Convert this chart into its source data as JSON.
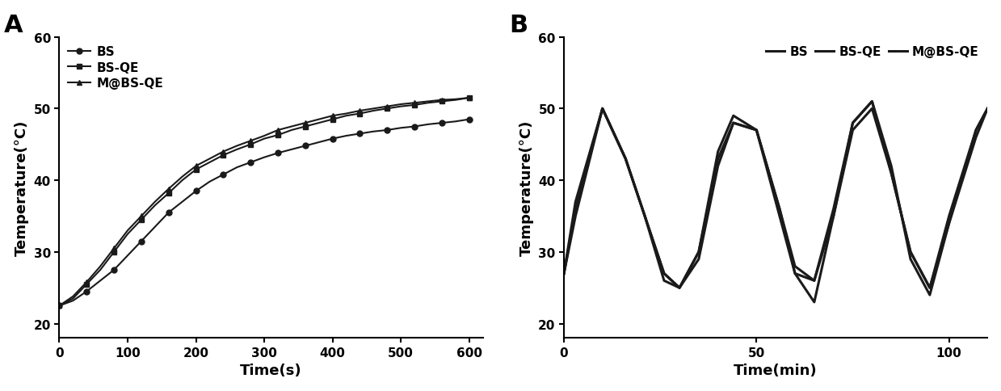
{
  "panel_A": {
    "title": "A",
    "xlabel": "Time(s)",
    "ylabel": "Temperature(°C)",
    "xlim": [
      0,
      620
    ],
    "ylim": [
      18,
      60
    ],
    "yticks": [
      20,
      30,
      40,
      50,
      60
    ],
    "xticks": [
      0,
      100,
      200,
      300,
      400,
      500,
      600
    ],
    "series": {
      "BS": {
        "label": "BS",
        "marker": "o",
        "color": "#1a1a1a",
        "linewidth": 1.5,
        "markersize": 5,
        "x": [
          0,
          20,
          40,
          60,
          80,
          100,
          120,
          140,
          160,
          180,
          200,
          220,
          240,
          260,
          280,
          300,
          320,
          340,
          360,
          380,
          400,
          420,
          440,
          460,
          480,
          500,
          520,
          540,
          560,
          580,
          600
        ],
        "y": [
          22.5,
          23.2,
          24.5,
          26.0,
          27.5,
          29.5,
          31.5,
          33.5,
          35.5,
          37.0,
          38.5,
          39.8,
          40.8,
          41.8,
          42.5,
          43.2,
          43.8,
          44.3,
          44.8,
          45.3,
          45.8,
          46.2,
          46.5,
          46.8,
          47.0,
          47.3,
          47.5,
          47.8,
          48.0,
          48.2,
          48.5
        ]
      },
      "BS-QE": {
        "label": "BS-QE",
        "marker": "s",
        "color": "#1a1a1a",
        "linewidth": 1.5,
        "markersize": 5,
        "x": [
          0,
          20,
          40,
          60,
          80,
          100,
          120,
          140,
          160,
          180,
          200,
          220,
          240,
          260,
          280,
          300,
          320,
          340,
          360,
          380,
          400,
          420,
          440,
          460,
          480,
          500,
          520,
          540,
          560,
          580,
          600
        ],
        "y": [
          22.5,
          23.5,
          25.5,
          27.5,
          30.0,
          32.5,
          34.5,
          36.5,
          38.2,
          40.0,
          41.5,
          42.5,
          43.5,
          44.3,
          45.0,
          45.8,
          46.3,
          47.0,
          47.5,
          48.0,
          48.5,
          49.0,
          49.3,
          49.7,
          50.0,
          50.3,
          50.5,
          50.8,
          51.0,
          51.2,
          51.5
        ]
      },
      "M@BS-QE": {
        "label": "M@BS-QE",
        "marker": "^",
        "color": "#1a1a1a",
        "linewidth": 1.5,
        "markersize": 5,
        "x": [
          0,
          20,
          40,
          60,
          80,
          100,
          120,
          140,
          160,
          180,
          200,
          220,
          240,
          260,
          280,
          300,
          320,
          340,
          360,
          380,
          400,
          420,
          440,
          460,
          480,
          500,
          520,
          540,
          560,
          580,
          600
        ],
        "y": [
          22.5,
          23.8,
          25.8,
          28.0,
          30.5,
          33.0,
          35.0,
          37.0,
          38.8,
          40.5,
          42.0,
          43.0,
          44.0,
          44.8,
          45.5,
          46.2,
          47.0,
          47.5,
          48.0,
          48.5,
          49.0,
          49.3,
          49.7,
          50.0,
          50.3,
          50.6,
          50.8,
          51.0,
          51.2,
          51.3,
          51.5
        ]
      }
    }
  },
  "panel_B": {
    "title": "B",
    "xlabel": "Time(min)",
    "ylabel": "Temperature(°C)",
    "xlim": [
      0,
      110
    ],
    "ylim": [
      18,
      60
    ],
    "yticks": [
      20,
      30,
      40,
      50,
      60
    ],
    "xticks": [
      0,
      50,
      100
    ],
    "series": {
      "BS": {
        "label": "BS",
        "color": "#1a1a1a",
        "linewidth": 2.2,
        "x": [
          0,
          3,
          10,
          16,
          21,
          26,
          30,
          35,
          40,
          44,
          50,
          56,
          60,
          65,
          70,
          75,
          80,
          85,
          90,
          95,
          100,
          107,
          110
        ],
        "y": [
          27,
          35,
          50,
          43,
          35,
          27,
          25,
          29,
          42,
          48,
          47,
          36,
          28,
          26,
          35,
          47,
          50,
          41,
          30,
          25,
          34,
          46,
          50
        ]
      },
      "BS-QE": {
        "label": "BS-QE",
        "color": "#1a1a1a",
        "linewidth": 2.2,
        "x": [
          0,
          3,
          10,
          16,
          21,
          26,
          30,
          35,
          40,
          44,
          50,
          56,
          60,
          65,
          70,
          75,
          80,
          85,
          90,
          95,
          100,
          107,
          110
        ],
        "y": [
          27,
          36,
          50,
          43,
          35,
          27,
          25,
          30,
          43,
          48,
          47,
          36,
          27,
          26,
          36,
          48,
          51,
          41,
          30,
          25,
          35,
          47,
          50
        ]
      },
      "M@BS-QE": {
        "label": "M@BS-QE",
        "color": "#1a1a1a",
        "linewidth": 2.2,
        "x": [
          0,
          3,
          10,
          16,
          21,
          26,
          30,
          35,
          40,
          44,
          50,
          56,
          60,
          65,
          70,
          75,
          80,
          85,
          90,
          95,
          100,
          107,
          110
        ],
        "y": [
          27,
          37,
          50,
          43,
          35,
          26,
          25,
          30,
          44,
          49,
          47,
          35,
          27,
          23,
          35,
          48,
          51,
          42,
          29,
          24,
          34,
          47,
          50
        ]
      }
    }
  },
  "background_color": "#ffffff",
  "label_fontsize": 13,
  "tick_fontsize": 11,
  "panel_label_fontsize": 22
}
